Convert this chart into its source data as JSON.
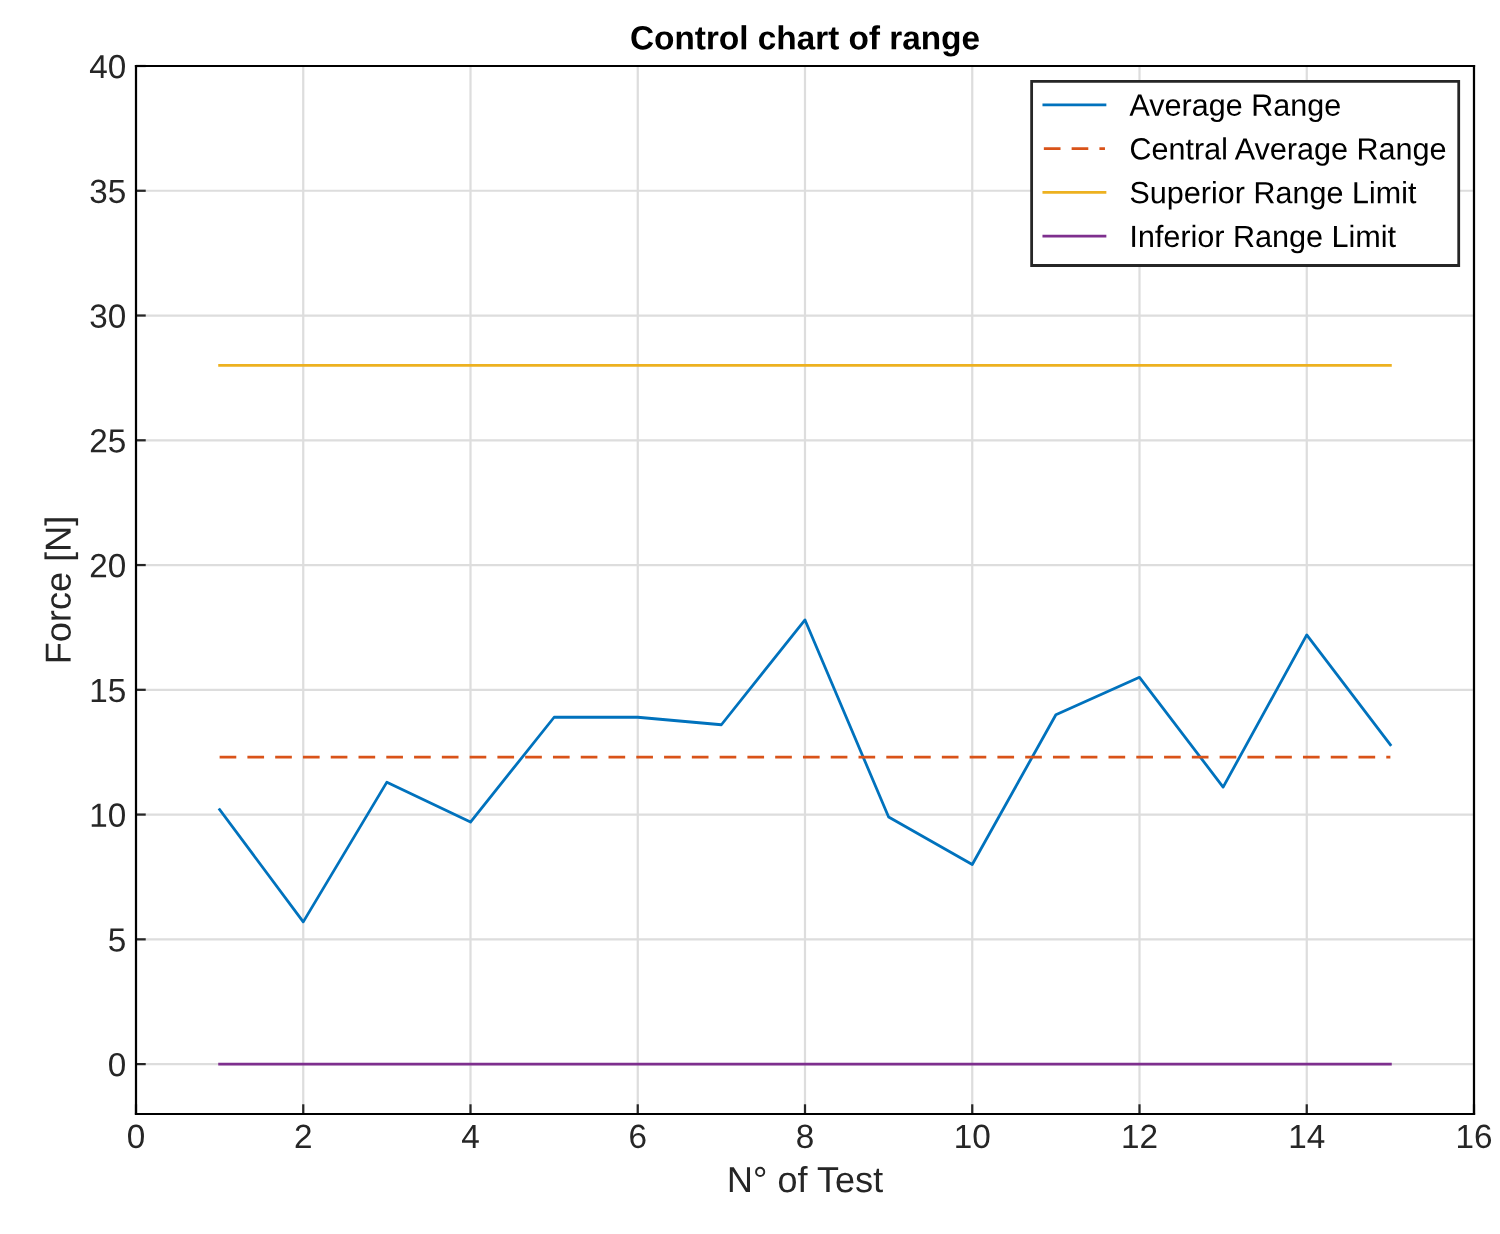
{
  "chart_data": {
    "type": "line",
    "title": "Control chart of range",
    "xlabel": "N° of Test",
    "ylabel": "Force [N]",
    "x": [
      1,
      2,
      3,
      4,
      5,
      6,
      7,
      8,
      9,
      10,
      11,
      12,
      13,
      14,
      15
    ],
    "series": [
      {
        "name": "Average Range",
        "color": "#0072bd",
        "values": [
          10.2,
          5.7,
          11.3,
          9.7,
          13.9,
          13.9,
          13.6,
          17.8,
          9.9,
          8.0,
          14.0,
          15.5,
          11.1,
          17.2,
          12.8
        ]
      },
      {
        "name": "Central Average Range",
        "color": "#d95319",
        "line_style": "dashed",
        "values": [
          12.3,
          12.3,
          12.3,
          12.3,
          12.3,
          12.3,
          12.3,
          12.3,
          12.3,
          12.3,
          12.3,
          12.3,
          12.3,
          12.3,
          12.3
        ]
      },
      {
        "name": "Superior Range Limit",
        "color": "#edb120",
        "values": [
          28.0,
          28.0,
          28.0,
          28.0,
          28.0,
          28.0,
          28.0,
          28.0,
          28.0,
          28.0,
          28.0,
          28.0,
          28.0,
          28.0,
          28.0
        ]
      },
      {
        "name": "Inferior Range Limit",
        "color": "#7e2f8e",
        "values": [
          0,
          0,
          0,
          0,
          0,
          0,
          0,
          0,
          0,
          0,
          0,
          0,
          0,
          0,
          0
        ]
      }
    ],
    "xlim": [
      0,
      16
    ],
    "xticks": [
      0,
      2,
      4,
      6,
      8,
      10,
      12,
      14,
      16
    ],
    "ylim": [
      -2,
      40
    ],
    "yticks": [
      0,
      5,
      10,
      15,
      20,
      25,
      30,
      35,
      40
    ],
    "grid": true,
    "legend": "top right",
    "marker": "none",
    "line_style": "solid"
  }
}
